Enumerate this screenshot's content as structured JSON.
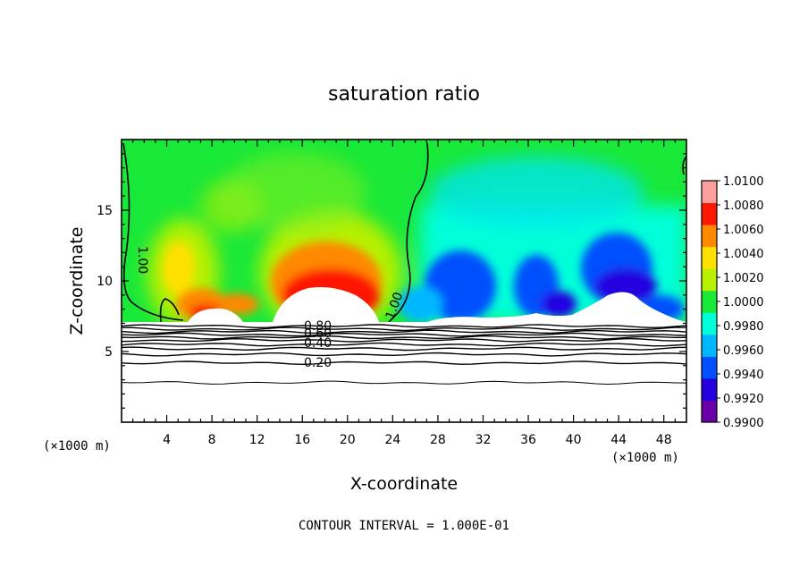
{
  "chart_data": {
    "type": "heatmap",
    "title": "saturation ratio",
    "xlabel": "X-coordinate",
    "ylabel": "Z-coordinate",
    "x_unit": "(×1000 m)",
    "y_unit": "(×1000 m)",
    "xlim": [
      0,
      50
    ],
    "ylim": [
      0,
      20
    ],
    "x_ticks": [
      4,
      8,
      12,
      16,
      20,
      24,
      28,
      32,
      36,
      40,
      44,
      48
    ],
    "y_ticks": [
      5,
      10,
      15
    ],
    "colorbar": {
      "levels": [
        "0.9900",
        "0.9920",
        "0.9940",
        "0.9960",
        "0.9980",
        "1.0000",
        "1.0020",
        "1.0040",
        "1.0060",
        "1.0080",
        "1.0100"
      ],
      "colors": [
        "#6a00a8",
        "#2400e0",
        "#0050ff",
        "#00b8ff",
        "#00ffd8",
        "#18e838",
        "#b8f000",
        "#ffe000",
        "#ff8800",
        "#ff1800",
        "#ff9e9e"
      ]
    },
    "terrain_top_z": 7.0,
    "contour_lines": [
      {
        "label": "1.00",
        "values": 1.0
      },
      {
        "label": "0.80",
        "values": 0.8
      },
      {
        "label": "0.60",
        "values": 0.6
      },
      {
        "label": "0.40",
        "values": 0.4
      },
      {
        "label": "0.20",
        "values": 0.2
      }
    ],
    "contour_interval_text": "CONTOUR INTERVAL = 1.000E-01"
  }
}
